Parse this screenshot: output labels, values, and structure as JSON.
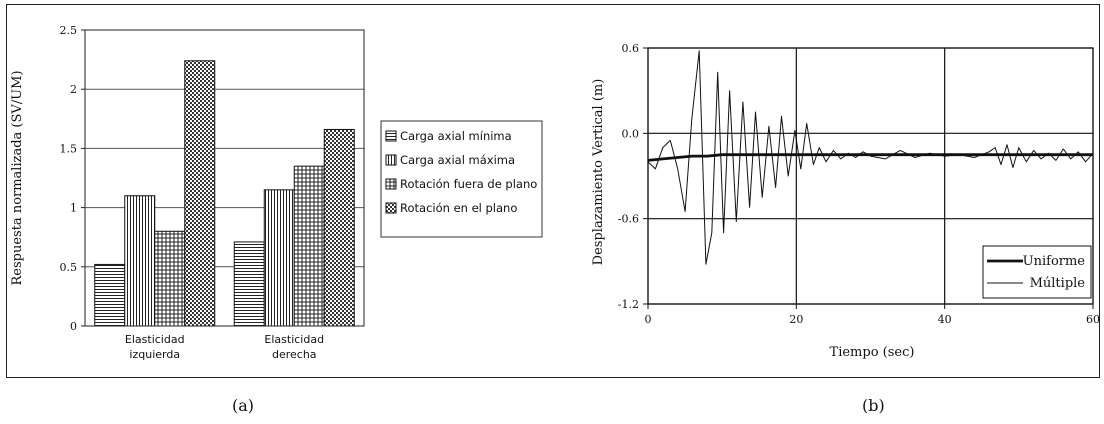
{
  "chart_data": [
    {
      "type": "bar",
      "ylabel": "Respuesta normalizada (SV/UM)",
      "ylim": [
        0,
        2.5
      ],
      "yticks": [
        "0",
        "0.5",
        "1",
        "1.5",
        "2",
        "2.5"
      ],
      "categories": [
        {
          "line1": "Elasticidad",
          "line2": "izquierda"
        },
        {
          "line1": "Elasticidad",
          "line2": "derecha"
        }
      ],
      "series": [
        {
          "name": "Carga axial mínima",
          "values": [
            0.52,
            0.71
          ],
          "pattern": "hlines"
        },
        {
          "name": "Carga axial máxima",
          "values": [
            1.1,
            1.15
          ],
          "pattern": "vlines"
        },
        {
          "name": "Rotación fuera de plano",
          "values": [
            0.8,
            1.35
          ],
          "pattern": "grid"
        },
        {
          "name": "Rotación en el plano",
          "values": [
            2.24,
            1.66
          ],
          "pattern": "checker"
        }
      ],
      "legend_position": "right",
      "grid": "horizontal"
    },
    {
      "type": "line",
      "xlabel": "Tiempo (sec)",
      "ylabel": "Desplazamiento Vertical (m)",
      "xlim": [
        0,
        60
      ],
      "ylim": [
        -1.2,
        0.6
      ],
      "xticks": [
        "0",
        "20",
        "40",
        "60"
      ],
      "yticks": [
        "0.6",
        "0.0",
        "-0.6",
        "-1.2"
      ],
      "grid": "both",
      "legend_position": "bottom-right",
      "series": [
        {
          "name": "Uniforme",
          "style": "thick",
          "x": [
            0,
            2,
            4,
            6,
            8,
            10,
            12,
            14,
            16,
            18,
            20,
            25,
            30,
            35,
            40,
            45,
            50,
            55,
            60
          ],
          "y": [
            -0.19,
            -0.18,
            -0.17,
            -0.16,
            -0.16,
            -0.15,
            -0.15,
            -0.15,
            -0.15,
            -0.15,
            -0.15,
            -0.15,
            -0.15,
            -0.15,
            -0.15,
            -0.15,
            -0.15,
            -0.15,
            -0.15
          ]
        },
        {
          "name": "Múltiple",
          "style": "thin",
          "x": [
            0,
            1,
            2,
            3,
            4,
            5,
            5.9,
            6.9,
            7.8,
            8.6,
            9.4,
            10.2,
            11.0,
            11.9,
            12.8,
            13.7,
            14.5,
            15.4,
            16.3,
            17.2,
            18.0,
            18.9,
            19.8,
            20.6,
            21.4,
            22.3,
            23.1,
            24.0,
            25.0,
            26.0,
            27.0,
            28.0,
            29.0,
            30.0,
            32.0,
            34.0,
            36.0,
            38.0,
            40.0,
            42.0,
            44.0,
            46.0,
            46.8,
            47.6,
            48.4,
            49.2,
            50.0,
            51.0,
            52.0,
            53.0,
            54.0,
            55.0,
            56.0,
            57.0,
            58.0,
            59.0,
            60.0
          ],
          "y": [
            -0.2,
            -0.25,
            -0.1,
            -0.05,
            -0.25,
            -0.55,
            0.1,
            0.58,
            -0.92,
            -0.7,
            0.43,
            -0.7,
            0.3,
            -0.62,
            0.22,
            -0.52,
            0.15,
            -0.45,
            0.05,
            -0.38,
            0.12,
            -0.3,
            0.02,
            -0.25,
            0.07,
            -0.22,
            -0.1,
            -0.2,
            -0.12,
            -0.18,
            -0.14,
            -0.17,
            -0.13,
            -0.16,
            -0.18,
            -0.12,
            -0.17,
            -0.14,
            -0.16,
            -0.15,
            -0.17,
            -0.13,
            -0.1,
            -0.22,
            -0.08,
            -0.24,
            -0.1,
            -0.2,
            -0.12,
            -0.18,
            -0.14,
            -0.19,
            -0.11,
            -0.18,
            -0.13,
            -0.2,
            -0.14
          ]
        }
      ]
    }
  ],
  "captions": {
    "a": "(a)",
    "b": "(b)"
  }
}
